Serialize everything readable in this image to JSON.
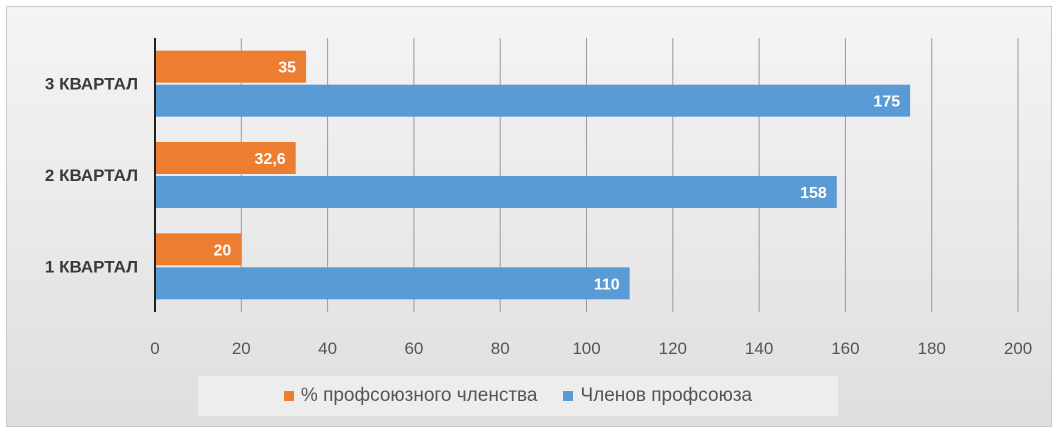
{
  "chart_data": {
    "type": "bar",
    "orientation": "horizontal",
    "categories": [
      "1 КВАРТАЛ",
      "2 КВАРТАЛ",
      "3 КВАРТАЛ"
    ],
    "series": [
      {
        "name": "% профсоюзного членства",
        "color": "#ED7D31",
        "values": [
          20,
          32.6,
          35
        ],
        "labels": [
          "20",
          "32,6",
          "35"
        ]
      },
      {
        "name": "Членов профсоюза",
        "color": "#5B9BD5",
        "values": [
          110,
          158,
          175
        ],
        "labels": [
          "110",
          "158",
          "175"
        ]
      }
    ],
    "xlim": [
      0,
      200
    ],
    "xticks": [
      "0",
      "20",
      "40",
      "60",
      "80",
      "100",
      "120",
      "140",
      "160",
      "180",
      "200"
    ],
    "grid": true,
    "legend_position": "bottom"
  }
}
